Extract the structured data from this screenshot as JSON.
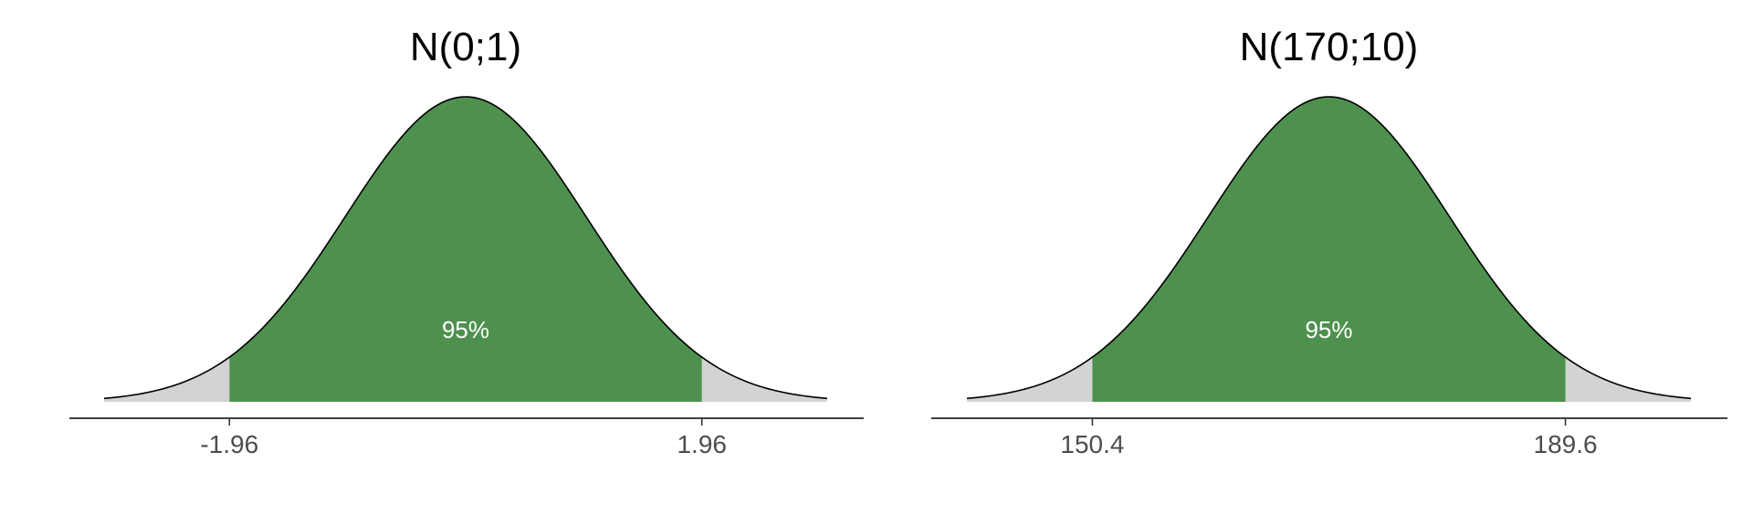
{
  "chart_data": [
    {
      "type": "area",
      "title": "N(0;1)",
      "distribution": "normal",
      "mean": 0,
      "sd": 1,
      "xlim": [
        -3,
        3
      ],
      "shaded_interval": [
        -1.96,
        1.96
      ],
      "shaded_label": "95%",
      "tick_values": [
        -1.96,
        1.96
      ],
      "tick_labels": [
        "-1.96",
        "1.96"
      ],
      "grid": false,
      "colors": {
        "center": "#4e914e",
        "tails": "#d3d3d3",
        "outline": "#000000"
      }
    },
    {
      "type": "area",
      "title": "N(170;10)",
      "distribution": "normal",
      "mean": 170,
      "sd": 10,
      "xlim": [
        140,
        200
      ],
      "shaded_interval": [
        150.4,
        189.6
      ],
      "shaded_label": "95%",
      "tick_values": [
        150.4,
        189.6
      ],
      "tick_labels": [
        "150.4",
        "189.6"
      ],
      "grid": false,
      "colors": {
        "center": "#4e914e",
        "tails": "#d3d3d3",
        "outline": "#000000"
      }
    }
  ]
}
